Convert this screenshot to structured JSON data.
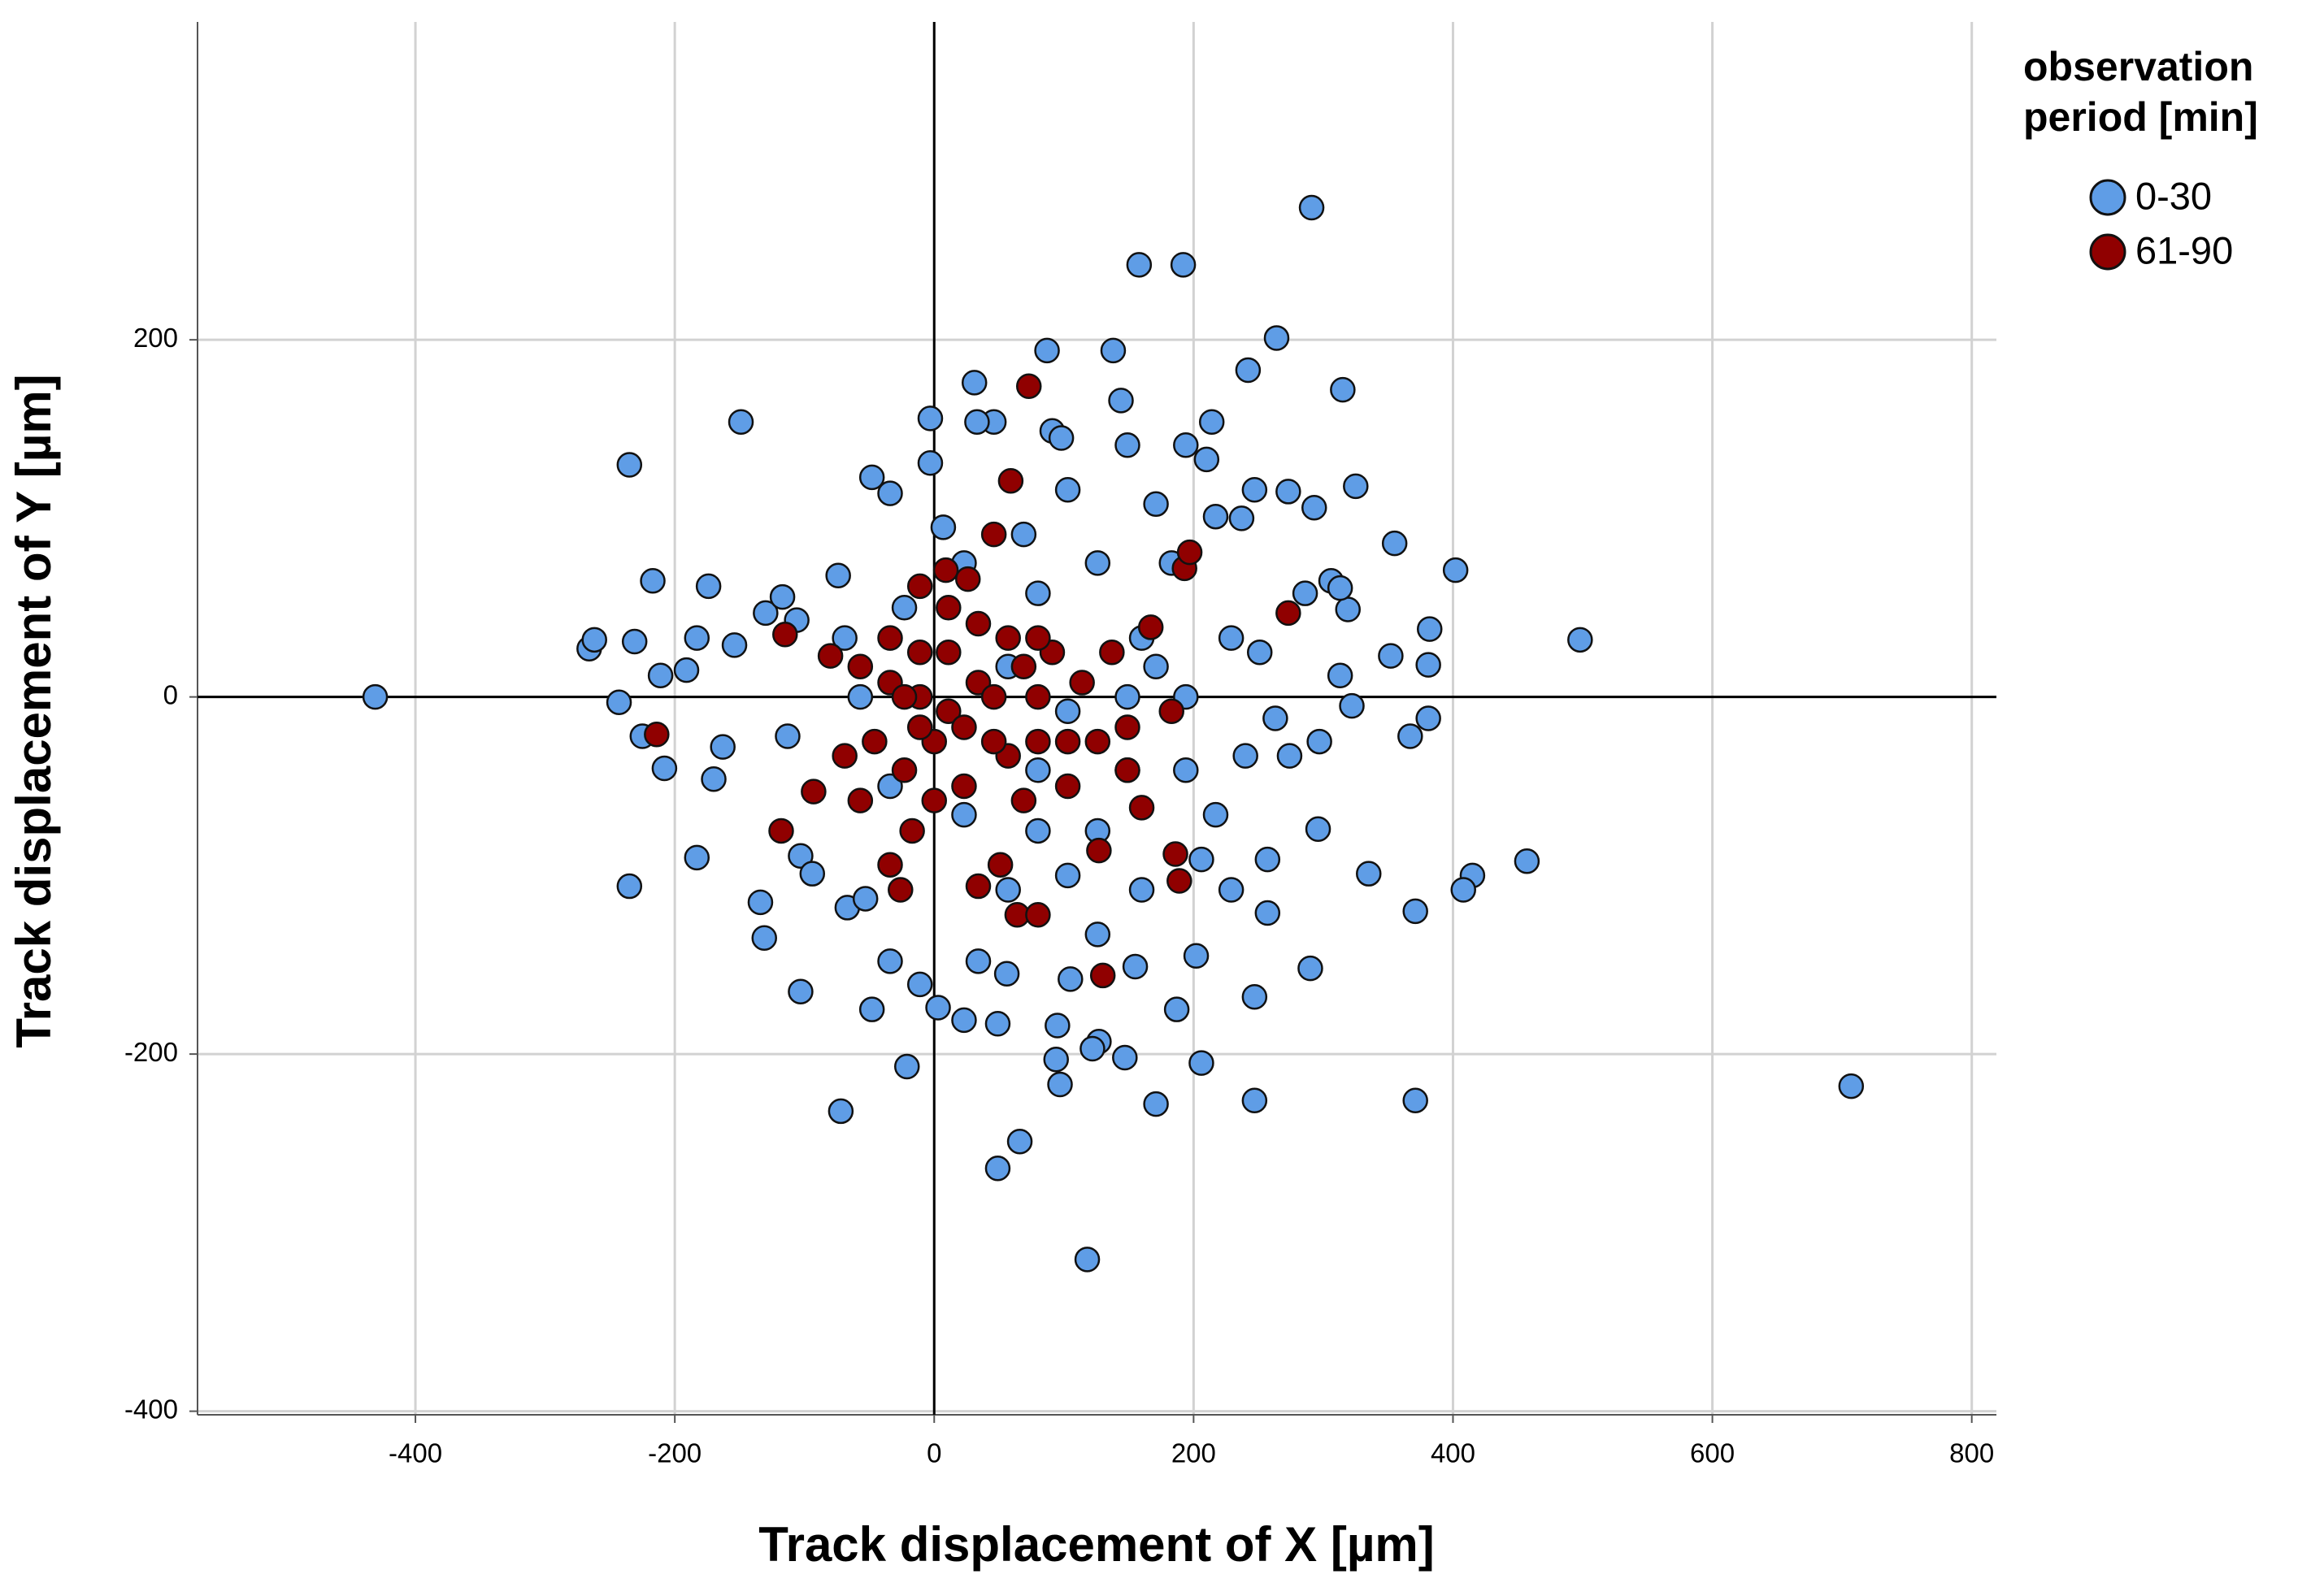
{
  "chart_data": {
    "type": "scatter",
    "x_label": "Track displacement of X [µm]",
    "y_label": "Track displacement of Y [µm]",
    "legend_title": [
      "observation",
      "period [min]"
    ],
    "legend_position": "right",
    "xlim": [
      -568,
      819
    ],
    "ylim": [
      -402,
      378
    ],
    "xticks": [
      -400,
      -200,
      0,
      200,
      400,
      600,
      800
    ],
    "yticks": [
      -400,
      -200,
      0,
      200
    ],
    "grid": true,
    "reference_lines_x": [
      0
    ],
    "reference_lines_y": [
      0
    ],
    "series": [
      {
        "name": "0-30",
        "color": "#5f9de6",
        "x": [
          -431,
          707,
          498,
          291,
          158,
          192,
          264,
          118,
          -266,
          -262,
          -235,
          -235,
          -231,
          -243,
          -217,
          -211,
          -208,
          -225,
          -183,
          -183,
          -174,
          -191,
          -163,
          -170,
          -154,
          -149,
          -134,
          -131,
          -130,
          -117,
          -113,
          -106,
          -103,
          -103,
          -94,
          -72,
          -74,
          -67,
          -53,
          -48,
          -48,
          -34,
          -34,
          -21,
          -3,
          -3,
          -11,
          3,
          7,
          31,
          46,
          33,
          23,
          34,
          49,
          49,
          66,
          56,
          87,
          91,
          98,
          95,
          94,
          97,
          105,
          127,
          122,
          138,
          144,
          147,
          155,
          171,
          187,
          206,
          202,
          217,
          214,
          210,
          242,
          237,
          247,
          247,
          247,
          257,
          257,
          273,
          293,
          290,
          296,
          306,
          315,
          313,
          325,
          322,
          319,
          313,
          335,
          352,
          355,
          371,
          371,
          382,
          381,
          381,
          367,
          402,
          415,
          457,
          408,
          274,
          263,
          229,
          183,
          171,
          149,
          126,
          80,
          57,
          103,
          160,
          194,
          217,
          229,
          69,
          103,
          149,
          194,
          171,
          126,
          80,
          57,
          23,
          -34,
          -57,
          -69,
          -23,
          23,
          149,
          251,
          286,
          297,
          206,
          160,
          126,
          103,
          80,
          194,
          240
        ],
        "values": [
          0,
          -218,
          32,
          274,
          242,
          242,
          201,
          -315,
          27,
          32,
          130,
          -106,
          31,
          -3,
          65,
          12,
          -40,
          -22,
          -90,
          33,
          62,
          15,
          -28,
          -46,
          29,
          154,
          -115,
          -135,
          47,
          56,
          -22,
          43,
          -165,
          -89,
          -99,
          -232,
          68,
          -118,
          -113,
          -175,
          123,
          114,
          -148,
          -207,
          156,
          131,
          -161,
          -174,
          95,
          176,
          154,
          154,
          -181,
          -148,
          -183,
          -264,
          -249,
          -155,
          194,
          149,
          145,
          -184,
          -203,
          -217,
          -158,
          -193,
          -197,
          194,
          166,
          -202,
          -151,
          -228,
          -175,
          -205,
          -145,
          101,
          154,
          133,
          183,
          100,
          116,
          -168,
          -226,
          -91,
          -121,
          115,
          106,
          -152,
          -74,
          65,
          172,
          12,
          118,
          -5,
          49,
          61,
          -99,
          23,
          86,
          -120,
          -226,
          38,
          18,
          -12,
          -22,
          71,
          -100,
          -92,
          -108,
          -33,
          -12,
          33,
          75,
          17,
          -41,
          -75,
          58,
          17,
          -8,
          33,
          -41,
          -66,
          -108,
          91,
          116,
          141,
          141,
          108,
          75,
          -75,
          -108,
          -66,
          -50,
          0,
          33,
          50,
          75,
          0,
          25,
          58,
          -25,
          -91,
          -108,
          -133,
          -100,
          -41,
          0,
          -33
        ]
      },
      {
        "name": "61-90",
        "color": "#900000",
        "x": [
          -214,
          -115,
          -118,
          -93,
          -80,
          -57,
          -34,
          -26,
          -17,
          -11,
          9,
          59,
          73,
          26,
          46,
          34,
          64,
          80,
          51,
          130,
          127,
          186,
          189,
          193,
          197,
          273,
          167,
          137,
          149,
          160,
          103,
          80,
          57,
          34,
          11,
          -11,
          -34,
          -46,
          -23,
          0,
          23,
          46,
          69,
          91,
          114,
          126,
          80,
          11,
          34,
          -11,
          -57,
          -69,
          -34,
          57,
          23,
          0,
          69,
          103,
          149,
          183,
          11,
          -11,
          80,
          46,
          -23
        ],
        "values": [
          -21,
          35,
          -75,
          -53,
          23,
          -58,
          -94,
          -108,
          -75,
          62,
          71,
          121,
          174,
          66,
          91,
          -106,
          -122,
          -122,
          -94,
          -156,
          -86,
          -88,
          -103,
          72,
          81,
          47,
          39,
          25,
          -41,
          -62,
          -25,
          0,
          33,
          8,
          -8,
          25,
          8,
          -25,
          -41,
          -25,
          -17,
          0,
          17,
          25,
          8,
          -25,
          -25,
          50,
          41,
          0,
          17,
          -33,
          33,
          -33,
          -50,
          -58,
          -58,
          -50,
          -17,
          -8,
          25,
          -17,
          33,
          -25,
          0
        ]
      }
    ]
  }
}
